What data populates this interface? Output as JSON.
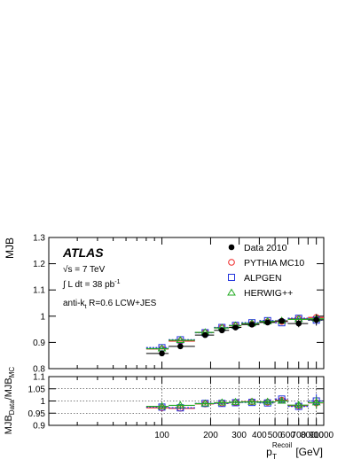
{
  "chart_data": [
    {
      "type": "scatter",
      "panel": "main",
      "ylabel": "MJB",
      "ylim": [
        0.8,
        1.3
      ],
      "yticks": [
        0.8,
        0.9,
        1,
        1.1,
        1.2,
        1.3
      ],
      "ytick_labels": [
        "0.8",
        "0.9",
        "1",
        "1.1",
        "1.2",
        "1.3"
      ],
      "xlim": [
        20,
        1000
      ],
      "log_x": true,
      "annotations": {
        "experiment": "ATLAS",
        "energy": "√s = 7 TeV",
        "lumi_prefix": "∫ L dt = 38 pb",
        "lumi_exp": "-1",
        "jet_prefix": "anti-k",
        "jet_sub": "t",
        "jet_suffix": " R=0.6  LCW+JES"
      },
      "legend_position": "top-right",
      "series": [
        {
          "name": "Data 2010",
          "marker": "filled-circle",
          "color": "#000000",
          "x": [
            100,
            130,
            185,
            235,
            285,
            360,
            450,
            550,
            700,
            900
          ],
          "xlo": [
            80,
            110,
            160,
            210,
            260,
            310,
            400,
            500,
            600,
            800
          ],
          "xhi": [
            110,
            160,
            210,
            260,
            310,
            400,
            500,
            600,
            800,
            1000
          ],
          "y": [
            0.858,
            0.885,
            0.928,
            0.946,
            0.957,
            0.968,
            0.976,
            0.982,
            0.972,
            0.986
          ],
          "yerr": [
            0.006,
            0.005,
            0.005,
            0.004,
            0.004,
            0.004,
            0.005,
            0.006,
            0.014,
            0.022
          ]
        },
        {
          "name": "PYTHIA MC10",
          "marker": "open-circle",
          "color": "#ee2222",
          "x": [
            100,
            130,
            185,
            235,
            285,
            360,
            450,
            550,
            700,
            900
          ],
          "xlo": [
            80,
            110,
            160,
            210,
            260,
            310,
            400,
            500,
            600,
            800
          ],
          "xhi": [
            110,
            160,
            210,
            260,
            310,
            400,
            500,
            600,
            800,
            1000
          ],
          "y": [
            0.875,
            0.905,
            0.937,
            0.956,
            0.963,
            0.97,
            0.979,
            0.98,
            0.99,
            0.995
          ]
        },
        {
          "name": "ALPGEN",
          "marker": "open-square",
          "color": "#2233dd",
          "x": [
            100,
            130,
            185,
            235,
            285,
            360,
            450,
            550,
            700,
            900
          ],
          "xlo": [
            80,
            110,
            160,
            210,
            260,
            310,
            400,
            500,
            600,
            800
          ],
          "xhi": [
            110,
            160,
            210,
            260,
            310,
            400,
            500,
            600,
            800,
            1000
          ],
          "y": [
            0.88,
            0.91,
            0.937,
            0.957,
            0.965,
            0.975,
            0.983,
            0.975,
            0.992,
            0.985
          ]
        },
        {
          "name": "HERWIG++",
          "marker": "open-triangle",
          "color": "#22aa22",
          "x": [
            100,
            130,
            185,
            235,
            285,
            360,
            450,
            550,
            700,
            900
          ],
          "xlo": [
            80,
            110,
            160,
            210,
            260,
            310,
            400,
            500,
            600,
            800
          ],
          "xhi": [
            110,
            160,
            210,
            260,
            310,
            400,
            500,
            600,
            800,
            1000
          ],
          "y": [
            0.876,
            0.908,
            0.938,
            0.955,
            0.964,
            0.972,
            0.98,
            0.982,
            0.988,
            0.99
          ]
        }
      ]
    },
    {
      "type": "scatter",
      "panel": "ratio",
      "ylabel_main": "MJB",
      "ylabel_num_sub": "Data",
      "ylabel_mid": "/MJB",
      "ylabel_den_sub": "MC",
      "xlabel_main": "p",
      "xlabel_sub": "T",
      "xlabel_sup": "Recoil",
      "xlabel_unit": " [GeV]",
      "ylim": [
        0.9,
        1.1
      ],
      "yticks": [
        0.9,
        0.95,
        1,
        1.05,
        1.1
      ],
      "ytick_labels": [
        "0.9",
        "0.95",
        "1",
        "1.05",
        "1.1"
      ],
      "xticks": [
        100,
        200,
        300,
        400,
        500,
        600,
        700,
        800,
        900,
        1000
      ],
      "xtick_labels": [
        "100",
        "200",
        "300",
        "400",
        "500",
        "600",
        "700",
        "800",
        "900",
        "1000"
      ],
      "xlim": [
        20,
        1000
      ],
      "log_x": true,
      "grid": true,
      "series": [
        {
          "name": "PYTHIA MC10",
          "marker": "open-circle",
          "color": "#ee2222",
          "x": [
            100,
            130,
            185,
            235,
            285,
            360,
            450,
            550,
            700,
            900
          ],
          "xlo": [
            80,
            110,
            160,
            210,
            260,
            310,
            400,
            500,
            600,
            800
          ],
          "xhi": [
            110,
            160,
            210,
            260,
            310,
            400,
            500,
            600,
            800,
            1000
          ],
          "y": [
            0.972,
            0.97,
            0.988,
            0.991,
            0.994,
            0.997,
            0.995,
            1.003,
            0.98,
            0.992
          ],
          "yerr": [
            0.007,
            0.006,
            0.005,
            0.005,
            0.005,
            0.005,
            0.006,
            0.008,
            0.015,
            0.025
          ]
        },
        {
          "name": "ALPGEN",
          "marker": "open-square",
          "color": "#2233dd",
          "x": [
            100,
            130,
            185,
            235,
            285,
            360,
            450,
            550,
            700,
            900
          ],
          "xlo": [
            80,
            110,
            160,
            210,
            260,
            310,
            400,
            500,
            600,
            800
          ],
          "xhi": [
            110,
            160,
            210,
            260,
            310,
            400,
            500,
            600,
            800,
            1000
          ],
          "y": [
            0.975,
            0.972,
            0.99,
            0.99,
            0.993,
            0.994,
            0.992,
            1.008,
            0.978,
            1.0
          ],
          "yerr": [
            0.007,
            0.006,
            0.005,
            0.005,
            0.005,
            0.005,
            0.006,
            0.008,
            0.015,
            0.028
          ]
        },
        {
          "name": "HERWIG++",
          "marker": "open-triangle",
          "color": "#22aa22",
          "x": [
            100,
            130,
            185,
            235,
            285,
            360,
            450,
            550,
            700,
            900
          ],
          "xlo": [
            80,
            110,
            160,
            210,
            260,
            310,
            400,
            500,
            600,
            800
          ],
          "xhi": [
            110,
            160,
            210,
            260,
            310,
            400,
            500,
            600,
            800,
            1000
          ],
          "y": [
            0.978,
            0.982,
            0.989,
            0.993,
            0.995,
            0.996,
            0.996,
            1.0,
            0.983,
            0.993
          ],
          "yerr": [
            0.007,
            0.006,
            0.005,
            0.005,
            0.005,
            0.005,
            0.006,
            0.008,
            0.015,
            0.025
          ]
        }
      ]
    }
  ]
}
